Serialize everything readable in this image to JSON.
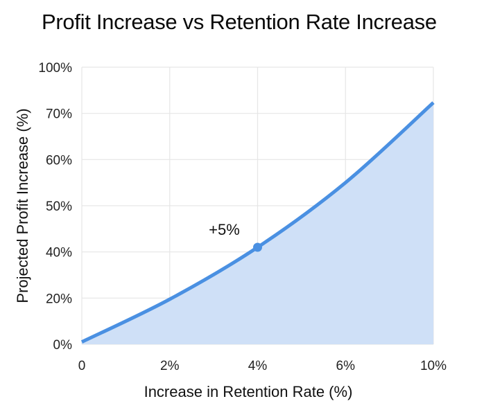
{
  "title": "Profit Increase vs Retention Rate Increase",
  "chart_data": {
    "type": "area",
    "title": "Profit Increase vs Retention Rate Increase",
    "xlabel": "Increase in Retention Rate (%)",
    "ylabel": "Projected Profit Increase (%)",
    "x_tick_labels": [
      "0",
      "2%",
      "4%",
      "6%",
      "10%"
    ],
    "y_tick_labels": [
      "0%",
      "20%",
      "40%",
      "50%",
      "60%",
      "70%",
      "100%"
    ],
    "grid": true,
    "legend": null,
    "series": [
      {
        "name": "Projected Profit Increase",
        "color": "#4a90e2",
        "fill_color": "#cfe0f7",
        "x": [
          "0",
          "2%",
          "4%",
          "6%",
          "10%"
        ],
        "values": [
          1,
          19.5,
          41,
          55,
          77
        ]
      }
    ],
    "annotations": [
      {
        "text": "+5%",
        "x": "4%",
        "y": 41,
        "marker": true
      }
    ]
  },
  "colors": {
    "line": "#4a90e2",
    "fill": "#cfe0f7",
    "grid": "#e6e6e6"
  }
}
